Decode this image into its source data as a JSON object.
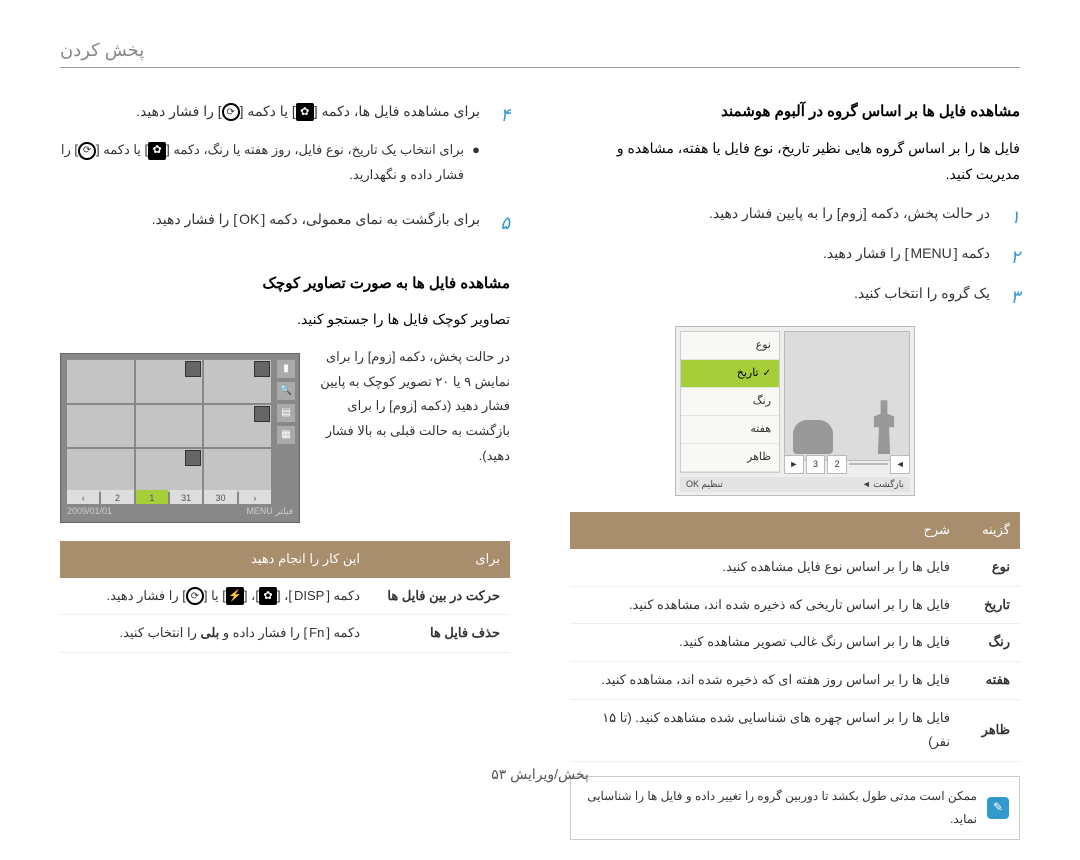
{
  "header": {
    "title": "پخش کردن"
  },
  "right_col": {
    "heading": "مشاهده فایل ها بر اساس گروه در آلبوم هوشمند",
    "intro": "فایل ها را بر اساس گروه هایی نظیر تاریخ، نوع فایل یا هفته، مشاهده و مدیریت کنید.",
    "steps": [
      {
        "n": "۱",
        "text": "در حالت پخش، دکمه [زوم] را به پایین فشار دهید."
      },
      {
        "n": "۲",
        "text_pre": "دکمه [",
        "key": "MENU",
        "text_post": "] را فشار دهید."
      },
      {
        "n": "۳",
        "text": "یک گروه را انتخاب کنید."
      }
    ],
    "screen": {
      "menu": [
        "نوع",
        "تاریخ",
        "رنگ",
        "هفته",
        "ظاهر"
      ],
      "selected_index": 1,
      "pager": [
        "2",
        "3"
      ],
      "bottom_left": "بازگشت ◄",
      "bottom_right": "تنظیم OK"
    },
    "table": {
      "head_option": "گزینه",
      "head_desc": "شرح",
      "rows": [
        {
          "opt": "نوع",
          "desc": "فایل ها را بر اساس نوع فایل مشاهده کنید."
        },
        {
          "opt": "تاریخ",
          "desc": "فایل ها را بر اساس تاریخی که ذخیره شده اند، مشاهده کنید."
        },
        {
          "opt": "رنگ",
          "desc": "فایل ها را بر اساس رنگ غالب تصویر مشاهده کنید."
        },
        {
          "opt": "هفته",
          "desc": "فایل ها را بر اساس روز هفته ای که ذخیره شده اند، مشاهده کنید."
        },
        {
          "opt": "ظاهر",
          "desc": "فایل ها را بر اساس چهره های شناسایی شده مشاهده کنید. (تا ۱۵ نفر)"
        }
      ]
    },
    "note": "ممکن است مدتی طول بکشد تا دوربین گروه را تغییر داده و فایل ها را شناسایی نماید."
  },
  "left_col": {
    "step4": {
      "n": "۴",
      "text_pre": "برای مشاهده فایل ها، دکمه [",
      "text_mid": "] یا دکمه [",
      "text_post": "] را فشار دهید."
    },
    "bullet": {
      "pre": "برای انتخاب یک تاریخ، نوع فایل، روز هفته یا رنگ، دکمه [",
      "mid": "] یا دکمه [",
      "post": "] را فشار داده و نگهدارید."
    },
    "step5": {
      "n": "۵",
      "text_pre": "برای بازگشت به نمای معمولی، دکمه [",
      "key": "OK",
      "text_post": "] را فشار دهید."
    },
    "heading2": "مشاهده فایل ها به صورت تصاویر کوچک",
    "line1": "تصاویر کوچک فایل ها را جستجو کنید.",
    "para": "در حالت پخش، دکمه [زوم] را برای نمایش ۹ یا ۲۰ تصویر کوچک به پایین فشار دهید (دکمه [زوم] را برای بازگشت به حالت قبلی به بالا فشار دهید).",
    "thumb_bottom_left": "فیلتر MENU",
    "thumb_bottom_right": "2009/01/01",
    "pager": [
      "‹",
      "30",
      "31",
      "1",
      "2",
      "›"
    ],
    "action_table": {
      "head_for": "برای",
      "head_action": "این کار را انجام دهید",
      "rows": [
        {
          "for": "حرکت در بین فایل ها",
          "action_pre": "دکمه [",
          "key1": "DISP",
          "action_post": "] را فشار دهید."
        },
        {
          "for": "حذف فایل ها",
          "action_pre": "دکمه [",
          "key": "Fn",
          "action_mid": "] را فشار داده و ",
          "bold": "بلی",
          "action_post": " را انتخاب کنید."
        }
      ]
    }
  },
  "footer": {
    "text": "پخش/ویرایش  ۵۳"
  }
}
